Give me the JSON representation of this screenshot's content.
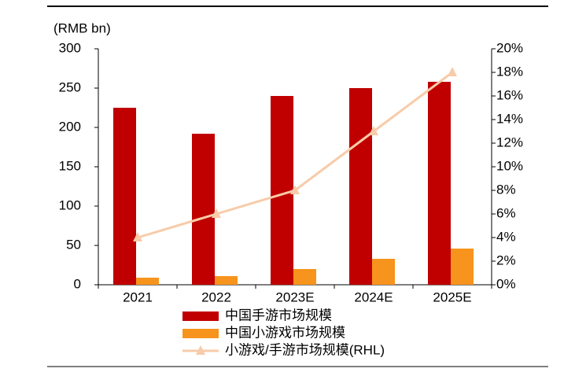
{
  "chart_data": {
    "type": "bar",
    "y_label": "(RMB bn)",
    "categories": [
      "2021",
      "2022",
      "2023E",
      "2024E",
      "2025E"
    ],
    "series": [
      {
        "name": "中国手游市场规模",
        "color": "#c00000",
        "values": [
          225,
          192,
          240,
          250,
          258
        ]
      },
      {
        "name": "中国小游戏市场规模",
        "color": "#f7941d",
        "values": [
          9,
          11,
          20,
          33,
          46
        ]
      },
      {
        "name": "小游戏/手游市场规模(RHL)",
        "color": "#f8cba9",
        "type": "line",
        "axis": "y2",
        "values": [
          4,
          6,
          8,
          13,
          18
        ]
      }
    ],
    "ylim": [
      0,
      300
    ],
    "yticks": [
      0,
      50,
      100,
      150,
      200,
      250,
      300
    ],
    "y2lim": [
      0,
      20
    ],
    "y2ticks": [
      {
        "value": 0,
        "label": "0%"
      },
      {
        "value": 2,
        "label": "2%"
      },
      {
        "value": 4,
        "label": "4%"
      },
      {
        "value": 6,
        "label": "6%"
      },
      {
        "value": 8,
        "label": "8%"
      },
      {
        "value": 10,
        "label": "10%"
      },
      {
        "value": 12,
        "label": "12%"
      },
      {
        "value": 14,
        "label": "14%"
      },
      {
        "value": 16,
        "label": "16%"
      },
      {
        "value": 18,
        "label": "18%"
      },
      {
        "value": 20,
        "label": "20%"
      }
    ],
    "legend": "bottom"
  }
}
